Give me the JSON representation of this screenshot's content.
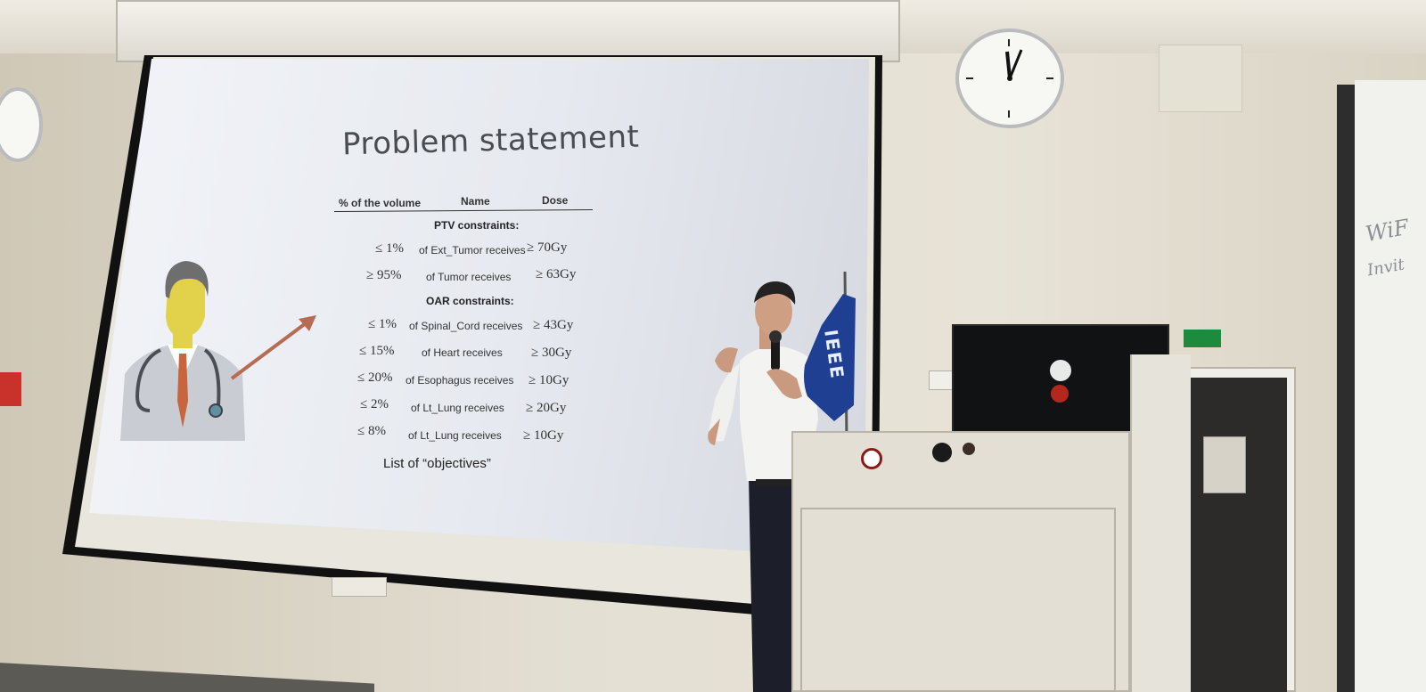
{
  "slide": {
    "title": "Problem statement",
    "table_headers": [
      "% of the volume",
      "Name",
      "Dose"
    ],
    "ptv_heading": "PTV constraints:",
    "oar_heading": "OAR constraints:",
    "rows": [
      {
        "volume": "≤ 1%",
        "name": "of Ext_Tumor receives",
        "dose": "≥ 70Gy"
      },
      {
        "volume": "≥ 95%",
        "name": "of Tumor receives",
        "dose": "≥ 63Gy"
      },
      {
        "volume": "≤ 1%",
        "name": "of Spinal_Cord receives",
        "dose": "≥ 43Gy"
      },
      {
        "volume": "≤ 15%",
        "name": "of Heart receives",
        "dose": "≥ 30Gy"
      },
      {
        "volume": "≤ 20%",
        "name": "of Esophagus receives",
        "dose": "≥ 10Gy"
      },
      {
        "volume": "≤ 2%",
        "name": "of Lt_Lung receives",
        "dose": "≥ 20Gy"
      },
      {
        "volume": "≤ 8%",
        "name": "of Lt_Lung receives",
        "dose": "≥ 10Gy"
      }
    ],
    "caption": "List of “objectives”"
  },
  "flag": {
    "text": "IEEE"
  },
  "whiteboard": {
    "line1": "WiF",
    "line2": "Invit"
  },
  "colors": {
    "slide_bg": "#eceef2",
    "accent_orange": "#c8653f",
    "flag_blue": "#1f3f93",
    "screen_border": "#111111"
  }
}
